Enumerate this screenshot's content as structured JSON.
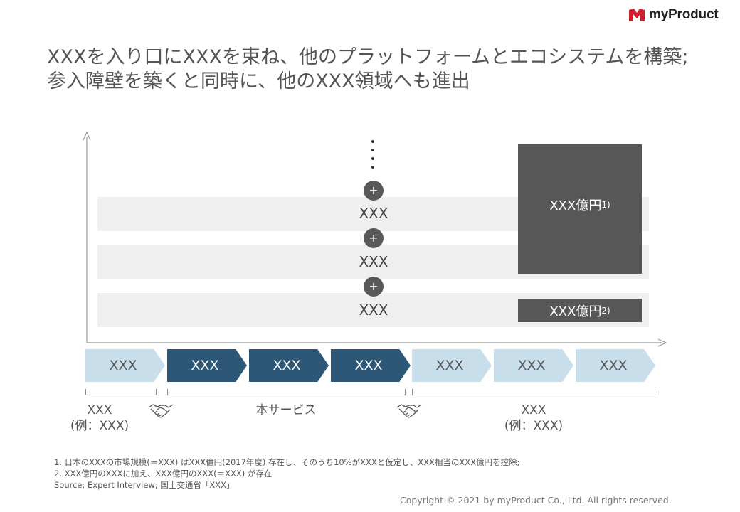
{
  "brand": {
    "name": "myProduct"
  },
  "title": {
    "line1": "XXXを入り口にXXXを束ね、他のプラットフォームとエコシステムを構築;",
    "line2": "参入障壁を築くと同時に、他のXXX領域へも進出"
  },
  "stack": {
    "rows": [
      "XXX",
      "XXX",
      "XXX"
    ],
    "plus_symbol": "+"
  },
  "boxes": {
    "large": {
      "label": "XXX億円",
      "note": "1)"
    },
    "small": {
      "label": "XXX億円",
      "note": "2)"
    }
  },
  "chain": {
    "steps": [
      {
        "label": "XXX",
        "style": "light"
      },
      {
        "label": "XXX",
        "style": "dark"
      },
      {
        "label": "XXX",
        "style": "dark"
      },
      {
        "label": "XXX",
        "style": "dark"
      },
      {
        "label": "XXX",
        "style": "light"
      },
      {
        "label": "XXX",
        "style": "light"
      },
      {
        "label": "XXX",
        "style": "light"
      }
    ]
  },
  "groups": {
    "left": {
      "line1": "XXX",
      "line2": "(例：XXX)"
    },
    "center": {
      "line1": "本サービス"
    },
    "right": {
      "line1": "XXX",
      "line2": "(例：XXX)"
    }
  },
  "icons": [
    "handshake-icon",
    "handshake-icon"
  ],
  "footnotes": [
    "1. 日本のXXXの市場規模(＝XXX) はXXX億円(2017年度) 存在し、そのうち10%がXXXと仮定し、XXX相当のXXX億円を控除;",
    "2. XXX億円のXXXに加え、XXX億円のXXX(＝XXX) が存在",
    "Source: Expert Interview; 国土交通省「XXX」"
  ],
  "copyright": "Copyright © 2021 by myProduct Co., Ltd.  All rights reserved.",
  "colors": {
    "dark_box": "#575757",
    "chevron_dark": "#2c5776",
    "chevron_light": "#c8dfeb",
    "band": "#efefef",
    "brand_red": "#d0202e"
  }
}
